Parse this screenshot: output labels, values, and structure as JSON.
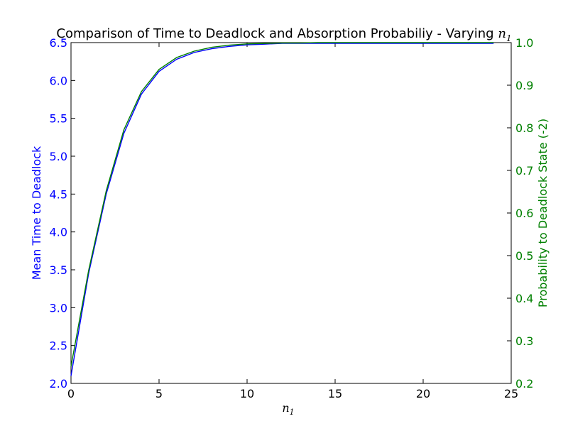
{
  "chart_data": {
    "type": "line",
    "title": "Comparison of Time to Deadlock and Absorption Probabiliy - Varying",
    "title_math": "n",
    "title_math_sub": "1",
    "xlabel_math": "n",
    "xlabel_math_sub": "1",
    "ylabel_left": "Mean Time to Deadlock",
    "ylabel_right": "Probability to Deadlock State (-2)",
    "xlim": [
      0,
      25
    ],
    "ylim_left": [
      2.0,
      6.5
    ],
    "ylim_right": [
      0.2,
      1.0
    ],
    "x_ticks": [
      "0",
      "5",
      "10",
      "15",
      "20",
      "25"
    ],
    "y_left_ticks": [
      "2.0",
      "2.5",
      "3.0",
      "3.5",
      "4.0",
      "4.5",
      "5.0",
      "5.5",
      "6.0",
      "6.5"
    ],
    "y_right_ticks": [
      "0.2",
      "0.3",
      "0.4",
      "0.5",
      "0.6",
      "0.7",
      "0.8",
      "0.9",
      "1.0"
    ],
    "grid": false,
    "colors": {
      "left": "#0000ff",
      "right": "#008000"
    },
    "series": [
      {
        "axis": "left",
        "x": [
          0,
          1,
          2,
          3,
          4,
          5,
          6,
          7,
          8,
          9,
          10,
          11,
          12,
          13,
          14,
          15,
          16,
          17,
          18,
          19,
          20,
          21,
          22,
          23,
          24
        ],
        "values": [
          2.1,
          3.45,
          4.5,
          5.3,
          5.82,
          6.12,
          6.28,
          6.37,
          6.42,
          6.45,
          6.47,
          6.48,
          6.49,
          6.49,
          6.49,
          6.49,
          6.49,
          6.49,
          6.49,
          6.49,
          6.49,
          6.49,
          6.49,
          6.49,
          6.49
        ]
      },
      {
        "axis": "right",
        "x": [
          0,
          1,
          2,
          3,
          4,
          5,
          6,
          7,
          8,
          9,
          10,
          11,
          12,
          13,
          14,
          15,
          16,
          17,
          18,
          19,
          20,
          21,
          22,
          23,
          24
        ],
        "values": [
          0.24,
          0.465,
          0.652,
          0.795,
          0.885,
          0.937,
          0.965,
          0.98,
          0.989,
          0.994,
          0.997,
          0.998,
          0.999,
          0.999,
          1.0,
          1.0,
          1.0,
          1.0,
          1.0,
          1.0,
          1.0,
          1.0,
          1.0,
          1.0,
          1.0
        ]
      }
    ]
  }
}
